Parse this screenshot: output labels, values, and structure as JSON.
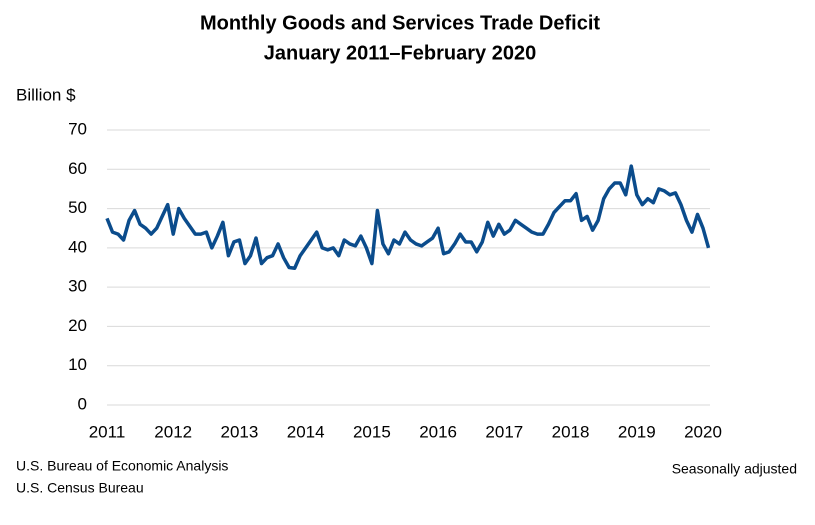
{
  "chart_data": {
    "type": "line",
    "title": "Monthly Goods and Services Trade Deficit",
    "subtitle": "January 2011–February 2020",
    "y_label": "Billion $",
    "notes": [
      "U.S. Bureau of Economic Analysis",
      "U.S. Census Bureau"
    ],
    "note_right": "Seasonally adjusted",
    "categories": [
      "2011",
      null,
      null,
      null,
      null,
      null,
      null,
      null,
      null,
      null,
      null,
      null,
      "2012",
      null,
      null,
      null,
      null,
      null,
      null,
      null,
      null,
      null,
      null,
      null,
      "2013",
      null,
      null,
      null,
      null,
      null,
      null,
      null,
      null,
      null,
      null,
      null,
      "2014",
      null,
      null,
      null,
      null,
      null,
      null,
      null,
      null,
      null,
      null,
      null,
      "2015",
      null,
      null,
      null,
      null,
      null,
      null,
      null,
      null,
      null,
      null,
      null,
      "2016",
      null,
      null,
      null,
      null,
      null,
      null,
      null,
      null,
      null,
      null,
      null,
      "2017",
      null,
      null,
      null,
      null,
      null,
      null,
      null,
      null,
      null,
      null,
      null,
      "2018",
      null,
      null,
      null,
      null,
      null,
      null,
      null,
      null,
      null,
      null,
      null,
      "2019",
      null,
      null,
      null,
      null,
      null,
      null,
      null,
      null,
      null,
      null,
      null,
      "2020",
      null
    ],
    "values": [
      47.5,
      44,
      43.5,
      42,
      47,
      49.5,
      46,
      45,
      43.5,
      45,
      48,
      51,
      43.5,
      50,
      47.5,
      45.5,
      43.5,
      43.5,
      44,
      40,
      43,
      46.5,
      38,
      41.5,
      42,
      36,
      38,
      42.5,
      36,
      37.5,
      38,
      41,
      37.5,
      35,
      34.8,
      38,
      40,
      42,
      44,
      40,
      39.5,
      40,
      38,
      42,
      41,
      40.5,
      43,
      40,
      36,
      49.5,
      41,
      38.5,
      42,
      41,
      44,
      42,
      41,
      40.5,
      41.5,
      42.5,
      45,
      38.5,
      39,
      41,
      43.5,
      41.5,
      41.5,
      39,
      41.5,
      46.5,
      43,
      46,
      43.5,
      44.5,
      47,
      46,
      45,
      44,
      43.5,
      43.5,
      46,
      49,
      50.5,
      52,
      52,
      53.8,
      47,
      48,
      44.5,
      47,
      52.5,
      55,
      56.5,
      56.5,
      53.5,
      60.8,
      53.5,
      51,
      52.5,
      51.5,
      55,
      54.5,
      53.5,
      54,
      51,
      47,
      44,
      48.5,
      45,
      40
    ],
    "color": "#0b4c8c",
    "ylim": [
      0,
      70
    ],
    "yticks": [
      0,
      10,
      20,
      30,
      40,
      50,
      60,
      70
    ],
    "grid": true
  }
}
